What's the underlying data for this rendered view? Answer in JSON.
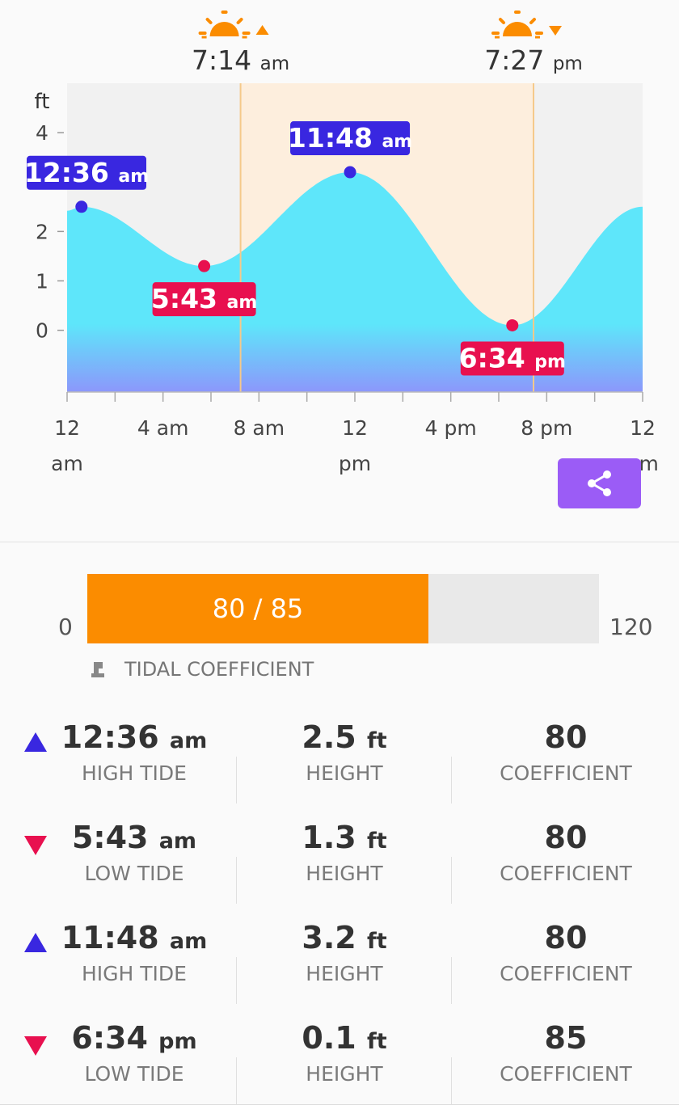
{
  "sun": {
    "sunrise": {
      "time": "7:14",
      "suffix": "am",
      "hour": 7.2333
    },
    "sunset": {
      "time": "7:27",
      "suffix": "pm",
      "hour": 19.45
    }
  },
  "chart_data": {
    "type": "area",
    "ylabel": "ft",
    "y_ticks": [
      "4",
      "2",
      "1",
      "0"
    ],
    "y_tick_values": [
      4,
      2,
      1,
      0
    ],
    "ylim": [
      -1.25,
      5.0
    ],
    "xlim": [
      0,
      24
    ],
    "x_ticks": [
      {
        "hour": 0,
        "line1": "12",
        "line2": "am"
      },
      {
        "hour": 4,
        "line1": "4 am",
        "line2": ""
      },
      {
        "hour": 8,
        "line1": "8 am",
        "line2": ""
      },
      {
        "hour": 12,
        "line1": "12",
        "line2": "pm"
      },
      {
        "hour": 16,
        "line1": "4 pm",
        "line2": ""
      },
      {
        "hour": 20,
        "line1": "8 pm",
        "line2": ""
      },
      {
        "hour": 24,
        "line1": "12",
        "line2": "am"
      }
    ],
    "extremes": [
      {
        "hour": 0.6,
        "height": 2.5,
        "type": "high",
        "time": "12:36",
        "suffix": "am"
      },
      {
        "hour": 5.7167,
        "height": 1.3,
        "type": "low",
        "time": "5:43",
        "suffix": "am"
      },
      {
        "hour": 11.8,
        "height": 3.2,
        "type": "high",
        "time": "11:48",
        "suffix": "am"
      },
      {
        "hour": 18.5667,
        "height": 0.1,
        "type": "low",
        "time": "6:34",
        "suffix": "pm"
      }
    ],
    "series": [
      {
        "start_height": 2.42,
        "end_height": 2.5
      }
    ],
    "grid": false,
    "colors": {
      "water_top": "#5ee6fa",
      "water_bottom": "#8c97fb",
      "high": "#3927e0",
      "low": "#e8104f",
      "daylight": "#fdeedd",
      "night": "#f1f1f1",
      "sun": "#fb8c00"
    }
  },
  "share": {
    "icon": "share-icon"
  },
  "coefficient": {
    "min": "0",
    "max": "120",
    "value_text": "80 / 85",
    "fraction": 0.6667,
    "label": "TIDAL COEFFICIENT"
  },
  "tides": [
    {
      "type": "high",
      "time": "12:36",
      "suffix": "am",
      "label": "HIGH TIDE",
      "height": "2.5",
      "unit": "ft",
      "height_label": "HEIGHT",
      "coef": "80",
      "coef_label": "COEFFICIENT"
    },
    {
      "type": "low",
      "time": "5:43",
      "suffix": "am",
      "label": "LOW TIDE",
      "height": "1.3",
      "unit": "ft",
      "height_label": "HEIGHT",
      "coef": "80",
      "coef_label": "COEFFICIENT"
    },
    {
      "type": "high",
      "time": "11:48",
      "suffix": "am",
      "label": "HIGH TIDE",
      "height": "3.2",
      "unit": "ft",
      "height_label": "HEIGHT",
      "coef": "80",
      "coef_label": "COEFFICIENT"
    },
    {
      "type": "low",
      "time": "6:34",
      "suffix": "pm",
      "label": "LOW TIDE",
      "height": "0.1",
      "unit": "ft",
      "height_label": "HEIGHT",
      "coef": "85",
      "coef_label": "COEFFICIENT"
    }
  ]
}
